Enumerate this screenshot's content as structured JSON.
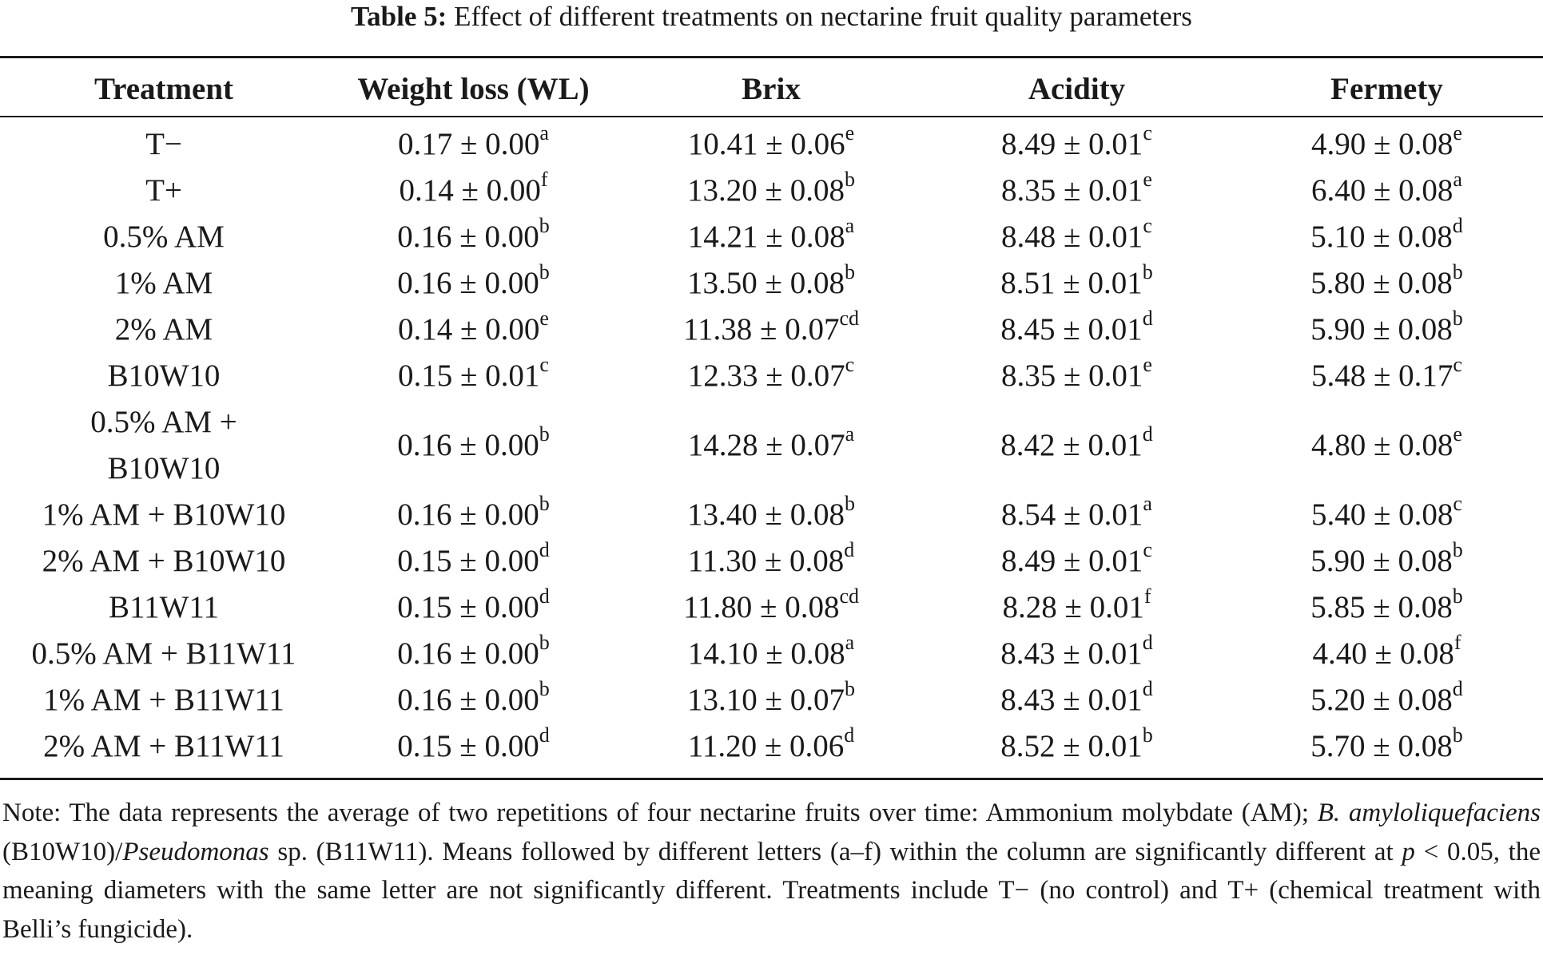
{
  "caption": {
    "label": "Table 5:",
    "text": "Effect of different treatments on nectarine fruit quality parameters"
  },
  "columns": [
    "Treatment",
    "Weight loss (WL)",
    "Brix",
    "Acidity",
    "Fermety"
  ],
  "rows": [
    {
      "treatment": "T−",
      "wl": "0.17 ± 0.00",
      "wl_sup": "a",
      "brix": "10.41 ± 0.06",
      "brix_sup": "e",
      "acidity": "8.49 ± 0.01",
      "acidity_sup": "c",
      "fermety": "4.90 ± 0.08",
      "fermety_sup": "e"
    },
    {
      "treatment": "T+",
      "wl": "0.14 ± 0.00",
      "wl_sup": "f",
      "brix": "13.20 ± 0.08",
      "brix_sup": "b",
      "acidity": "8.35 ± 0.01",
      "acidity_sup": "e",
      "fermety": "6.40 ± 0.08",
      "fermety_sup": "a"
    },
    {
      "treatment": "0.5% AM",
      "wl": "0.16 ± 0.00",
      "wl_sup": "b",
      "brix": "14.21 ± 0.08",
      "brix_sup": "a",
      "acidity": "8.48 ± 0.01",
      "acidity_sup": "c",
      "fermety": "5.10 ± 0.08",
      "fermety_sup": "d"
    },
    {
      "treatment": "1% AM",
      "wl": "0.16 ± 0.00",
      "wl_sup": "b",
      "brix": "13.50 ± 0.08",
      "brix_sup": "b",
      "acidity": "8.51 ± 0.01",
      "acidity_sup": "b",
      "fermety": "5.80 ± 0.08",
      "fermety_sup": "b"
    },
    {
      "treatment": "2% AM",
      "wl": "0.14 ± 0.00",
      "wl_sup": "e",
      "brix": "11.38 ± 0.07",
      "brix_sup": "cd",
      "acidity": "8.45 ± 0.01",
      "acidity_sup": "d",
      "fermety": "5.90 ± 0.08",
      "fermety_sup": "b"
    },
    {
      "treatment": "B10W10",
      "wl": "0.15 ± 0.01",
      "wl_sup": "c",
      "brix": "12.33 ± 0.07",
      "brix_sup": "c",
      "acidity": "8.35 ± 0.01",
      "acidity_sup": "e",
      "fermety": "5.48 ± 0.17",
      "fermety_sup": "c"
    },
    {
      "treatment": "0.5% AM + B10W10",
      "wl": "0.16 ± 0.00",
      "wl_sup": "b",
      "brix": "14.28 ± 0.07",
      "brix_sup": "a",
      "acidity": "8.42 ± 0.01",
      "acidity_sup": "d",
      "fermety": "4.80 ± 0.08",
      "fermety_sup": "e"
    },
    {
      "treatment": "1% AM + B10W10",
      "wl": "0.16 ± 0.00",
      "wl_sup": "b",
      "brix": "13.40 ± 0.08",
      "brix_sup": "b",
      "acidity": "8.54 ± 0.01",
      "acidity_sup": "a",
      "fermety": "5.40 ± 0.08",
      "fermety_sup": "c"
    },
    {
      "treatment": "2% AM + B10W10",
      "wl": "0.15 ± 0.00",
      "wl_sup": "d",
      "brix": "11.30 ± 0.08",
      "brix_sup": "d",
      "acidity": "8.49 ± 0.01",
      "acidity_sup": "c",
      "fermety": "5.90 ± 0.08",
      "fermety_sup": "b"
    },
    {
      "treatment": "B11W11",
      "wl": "0.15 ± 0.00",
      "wl_sup": "d",
      "brix": "11.80 ± 0.08",
      "brix_sup": "cd",
      "acidity": "8.28 ± 0.01",
      "acidity_sup": "f",
      "fermety": "5.85 ± 0.08",
      "fermety_sup": "b"
    },
    {
      "treatment": "0.5% AM + B11W11",
      "wl": "0.16 ± 0.00",
      "wl_sup": "b",
      "brix": "14.10 ± 0.08",
      "brix_sup": "a",
      "acidity": "8.43 ± 0.01",
      "acidity_sup": "d",
      "fermety": "4.40 ± 0.08",
      "fermety_sup": "f"
    },
    {
      "treatment": "1% AM + B11W11",
      "wl": "0.16 ± 0.00",
      "wl_sup": "b",
      "brix": "13.10 ± 0.07",
      "brix_sup": "b",
      "acidity": "8.43 ± 0.01",
      "acidity_sup": "d",
      "fermety": "5.20 ± 0.08",
      "fermety_sup": "d"
    },
    {
      "treatment": "2% AM + B11W11",
      "wl": "0.15 ± 0.00",
      "wl_sup": "d",
      "brix": "11.20 ± 0.06",
      "brix_sup": "d",
      "acidity": "8.52 ± 0.01",
      "acidity_sup": "b",
      "fermety": "5.70 ± 0.08",
      "fermety_sup": "b"
    }
  ],
  "note": {
    "p1": "Note: The data represents the average of two repetitions of four nectarine fruits over time: Ammonium molybdate (AM); ",
    "i1": "B. amyloliquefaciens",
    "p2": " (B10W10)/",
    "i2": "Pseudomonas",
    "p3": " sp. (B11W11). Means followed by different letters (a–f) within the column are significantly different at ",
    "i3": "p",
    "p4": " < 0.05, the meaning diameters with the same letter are not significantly different. Treatments include T− (no control) and T+ (chemical treatment with Belli’s fungicide)."
  }
}
